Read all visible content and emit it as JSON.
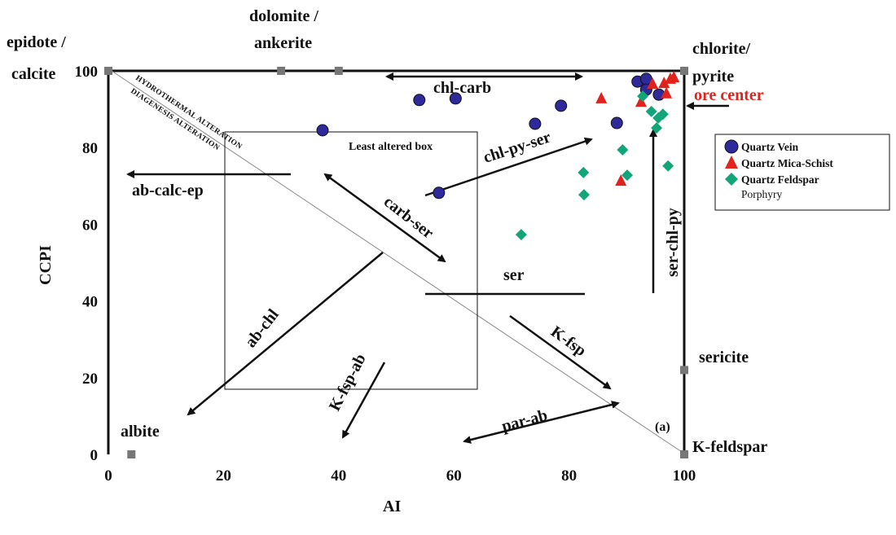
{
  "chart_data": {
    "type": "scatter",
    "title": "",
    "xlabel": "AI",
    "ylabel": "CCPI",
    "xlim": [
      0,
      100
    ],
    "ylim": [
      0,
      100
    ],
    "xticks": [
      "0",
      "20",
      "40",
      "60",
      "80",
      "100"
    ],
    "yticks": [
      "0",
      "20",
      "40",
      "60",
      "80",
      "100"
    ],
    "grid": false,
    "legend_position": "right",
    "series": [
      {
        "name": "Quartz Vein",
        "marker": "circle",
        "color": "#2e2a9c",
        "points": [
          [
            37.2,
            84.5
          ],
          [
            54.0,
            92.4
          ],
          [
            60.3,
            92.8
          ],
          [
            57.4,
            68.2
          ],
          [
            74.1,
            86.2
          ],
          [
            78.6,
            90.9
          ],
          [
            88.3,
            86.4
          ],
          [
            91.9,
            97.2
          ],
          [
            93.4,
            97.9
          ],
          [
            93.4,
            95.1
          ],
          [
            95.6,
            93.8
          ]
        ]
      },
      {
        "name": "Quartz Mica-Schist",
        "marker": "triangle",
        "color": "#e0231c",
        "points": [
          [
            85.6,
            92.8
          ],
          [
            89.0,
            71.3
          ],
          [
            92.5,
            91.9
          ],
          [
            94.5,
            96.6
          ],
          [
            96.5,
            96.8
          ],
          [
            97.6,
            97.9
          ],
          [
            96.9,
            94.1
          ],
          [
            98.2,
            98.3
          ]
        ]
      },
      {
        "name": "Quartz Feldspar",
        "name_line2": "Porphyry",
        "marker": "diamond",
        "color": "#12a57a",
        "points": [
          [
            71.7,
            57.3
          ],
          [
            82.5,
            73.5
          ],
          [
            82.6,
            67.7
          ],
          [
            89.3,
            79.4
          ],
          [
            90.1,
            72.8
          ],
          [
            92.8,
            93.4
          ],
          [
            94.3,
            89.4
          ],
          [
            95.5,
            87.7
          ],
          [
            95.2,
            85.1
          ],
          [
            96.3,
            88.7
          ],
          [
            97.2,
            75.2
          ]
        ]
      }
    ],
    "end_members": [
      {
        "label_1": "epidote /",
        "label_2": "calcite",
        "ai": 0,
        "ccpi": 100
      },
      {
        "label_1": "dolomite /",
        "label_2": "ankerite",
        "ai": 30,
        "ccpi": 100,
        "ai2": 40
      },
      {
        "label_1": "chlorite/",
        "label_2": "pyrite",
        "ai": 100,
        "ccpi": 100
      },
      {
        "label_1": "sericite",
        "ai": 100,
        "ccpi": 22
      },
      {
        "label_1": "K-feldspar",
        "ai": 100,
        "ccpi": 0
      },
      {
        "label_1": "albite",
        "ai": 4,
        "ccpi": 0
      }
    ],
    "annotations": {
      "ore_center": "ore center",
      "least_altered_box": "Least altered box",
      "hydrothermal": "HYDROTHERMAL ALTERATION",
      "diagenesis": "DIAGENESIS ALTERATION",
      "panel": "(a)",
      "trends": {
        "chl_carb": "chl-carb",
        "ab_calc_ep": "ab-calc-ep",
        "chl_py_ser": "chl-py-ser",
        "carb_ser": "carb-ser",
        "ser": "ser",
        "ser_chl_py": "ser-chl-py",
        "ab_chl": "ab-chl",
        "k_fsp_ab": "K-fsp-ab",
        "k_fsp": "K-fsp",
        "par_ab": "par-ab"
      }
    }
  }
}
